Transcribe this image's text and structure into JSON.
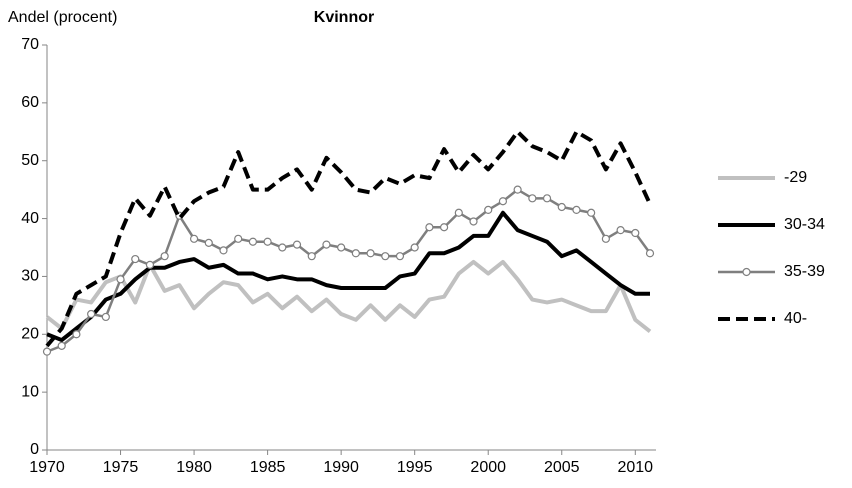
{
  "chart_data": {
    "type": "line",
    "title": "Kvinnor",
    "y_label": "Andel (procent)",
    "x": [
      1970,
      1971,
      1972,
      1973,
      1974,
      1975,
      1976,
      1977,
      1978,
      1979,
      1980,
      1981,
      1982,
      1983,
      1984,
      1985,
      1986,
      1987,
      1988,
      1989,
      1990,
      1991,
      1992,
      1993,
      1994,
      1995,
      1996,
      1997,
      1998,
      1999,
      2000,
      2001,
      2002,
      2003,
      2004,
      2005,
      2006,
      2007,
      2008,
      2009,
      2010,
      2011
    ],
    "series": [
      {
        "name": "-29",
        "color": "#c0c0c0",
        "line_style": "solid",
        "marker": "none",
        "values": [
          23,
          21,
          26,
          25.5,
          29,
          30,
          25.5,
          32,
          27.5,
          28.5,
          24.5,
          27,
          29,
          28.5,
          25.5,
          27,
          24.5,
          26.5,
          24,
          26,
          23.5,
          22.5,
          25,
          22.5,
          25,
          23,
          26,
          26.5,
          30.5,
          32.5,
          30.5,
          32.5,
          29.5,
          26,
          25.5,
          26,
          25,
          24,
          24,
          28.5,
          22.5,
          20.5
        ]
      },
      {
        "name": "30-34",
        "color": "#000000",
        "line_style": "solid",
        "marker": "none",
        "values": [
          20,
          19,
          21,
          23,
          26,
          27,
          29.5,
          31.5,
          31.5,
          32.5,
          33,
          31.5,
          32,
          30.5,
          30.5,
          29.5,
          30,
          29.5,
          29.5,
          28.5,
          28,
          28,
          28,
          28,
          30,
          30.5,
          34,
          34,
          35,
          37,
          37,
          41,
          38,
          37,
          36,
          33.5,
          34.5,
          32.5,
          30.5,
          28.5,
          27,
          27
        ]
      },
      {
        "name": "35-39",
        "color": "#7f7f7f",
        "line_style": "solid",
        "marker": "circle",
        "values": [
          17,
          18,
          20,
          23.5,
          23,
          29.5,
          33,
          32,
          33.5,
          40.5,
          36.5,
          35.8,
          34.5,
          36.5,
          36,
          36,
          35,
          35.5,
          33.5,
          35.5,
          35,
          34,
          34,
          33.5,
          33.5,
          35,
          38.5,
          38.5,
          41,
          39.5,
          41.5,
          43,
          45,
          43.5,
          43.5,
          42,
          41.5,
          41,
          36.5,
          38,
          37.5,
          34
        ]
      },
      {
        "name": "40-",
        "color": "#000000",
        "line_style": "dashed",
        "marker": "none",
        "values": [
          18,
          21,
          27,
          28.5,
          30,
          37.5,
          43.5,
          40.5,
          45.5,
          40,
          43,
          44.5,
          45.5,
          51.5,
          45,
          45,
          47,
          48.5,
          45,
          50.5,
          48,
          45,
          44.5,
          47,
          46,
          47.5,
          47,
          52,
          48,
          51,
          48.5,
          51.5,
          55,
          52.5,
          51.5,
          50,
          55,
          53.5,
          48.5,
          53,
          48,
          42.5
        ]
      }
    ],
    "xlim": [
      1970,
      2011
    ],
    "xticks": [
      1970,
      1975,
      1980,
      1985,
      1990,
      1995,
      2000,
      2005,
      2010
    ],
    "ylim": [
      0,
      70
    ],
    "yticks": [
      0,
      10,
      20,
      30,
      40,
      50,
      60,
      70
    ],
    "grid": false,
    "legend": "right"
  }
}
